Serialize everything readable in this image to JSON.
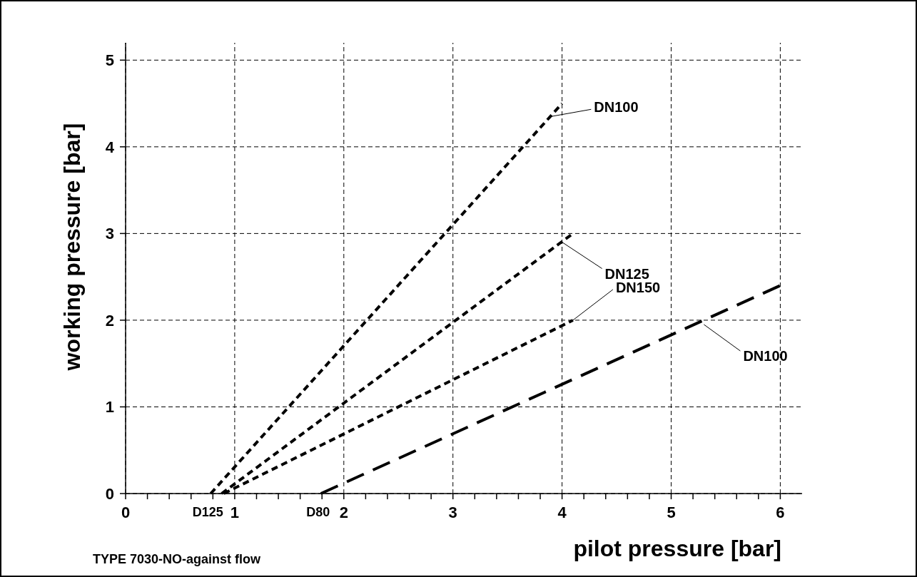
{
  "chart_data": {
    "type": "line",
    "xlabel": "pilot pressure [bar]",
    "ylabel": "working pressure [bar]",
    "xlim": [
      0,
      6.2
    ],
    "ylim": [
      0,
      5.2
    ],
    "xticks": [
      0,
      {
        "value": 0.2,
        "label": null
      },
      {
        "value": 0.4,
        "label": null
      },
      {
        "value": 0.6,
        "label": null
      },
      {
        "value": 0.8,
        "label": null
      },
      1,
      {
        "value": 1.2,
        "label": null
      },
      {
        "value": 1.4,
        "label": null
      },
      {
        "value": 1.6,
        "label": null
      },
      {
        "value": 1.8,
        "label": null
      },
      2,
      {
        "value": 2.2,
        "label": null
      },
      {
        "value": 2.4,
        "label": null
      },
      {
        "value": 2.6,
        "label": null
      },
      {
        "value": 2.8,
        "label": null
      },
      3,
      {
        "value": 3.2,
        "label": null
      },
      {
        "value": 3.4,
        "label": null
      },
      {
        "value": 3.6,
        "label": null
      },
      {
        "value": 3.8,
        "label": null
      },
      4,
      {
        "value": 4.2,
        "label": null
      },
      {
        "value": 4.4,
        "label": null
      },
      {
        "value": 4.6,
        "label": null
      },
      {
        "value": 4.8,
        "label": null
      },
      5,
      {
        "value": 5.2,
        "label": null
      },
      {
        "value": 5.4,
        "label": null
      },
      {
        "value": 5.6,
        "label": null
      },
      {
        "value": 5.8,
        "label": null
      },
      6
    ],
    "yticks": [
      0,
      1,
      2,
      3,
      4,
      5
    ],
    "grid": true,
    "marker": "none",
    "series": [
      {
        "color": "#000000",
        "line_style": "dotted",
        "x": [
          0.78,
          4.0
        ],
        "values": [
          0,
          4.5
        ]
      },
      {
        "color": "#000000",
        "line_style": "dotted",
        "x": [
          0.88,
          4.1
        ],
        "values": [
          0,
          3.0
        ]
      },
      {
        "color": "#000000",
        "line_style": "dotted",
        "x": [
          0.9,
          4.1
        ],
        "values": [
          0,
          2.0
        ]
      },
      {
        "color": "#000000",
        "line_style": "dashed",
        "x": [
          1.79,
          6.0
        ],
        "values": [
          0,
          2.4
        ]
      }
    ],
    "annotations": [
      {
        "text": "DN100",
        "x": 3.9,
        "y": 4.35
      },
      {
        "text": "DN125",
        "x": 4.0,
        "y": 2.9
      },
      {
        "text": "DN150",
        "x": 4.1,
        "y": 2.0
      },
      {
        "text": "DN100",
        "x": 5.3,
        "y": 1.95
      },
      {
        "text": "D125",
        "x": 0.78,
        "y": 0
      },
      {
        "text": "D80",
        "x": 1.79,
        "y": 0
      },
      "TYPE 7030-NO-against flow"
    ]
  }
}
